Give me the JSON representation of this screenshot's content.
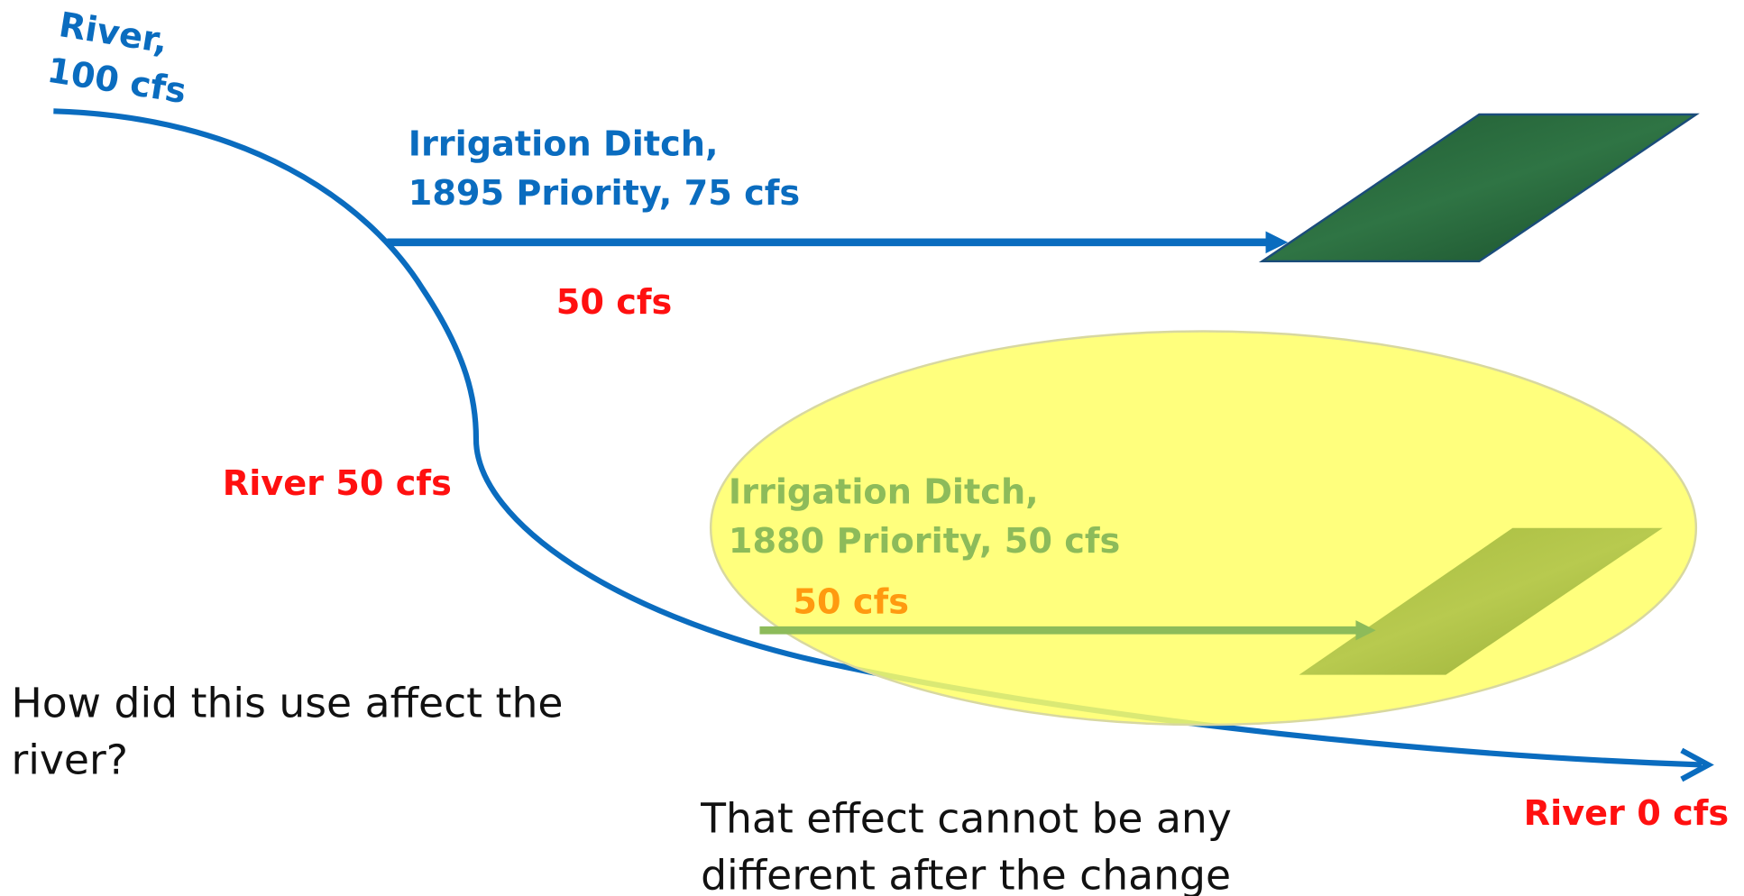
{
  "river_start": {
    "lines": [
      "River,",
      "100 cfs"
    ]
  },
  "ditch_1895": {
    "lines": [
      "Irrigation Ditch,",
      "1895 Priority, 75 cfs"
    ],
    "flow": "50 cfs"
  },
  "river_mid": "River 50 cfs",
  "ditch_1880": {
    "lines": [
      "Irrigation Ditch,",
      "1880 Priority, 50 cfs"
    ],
    "flow": "50 cfs"
  },
  "river_end": "River 0 cfs",
  "question": {
    "lines": [
      "How did this use affect the",
      "river?"
    ]
  },
  "answer": {
    "lines": [
      "That effect cannot be any",
      "different after the change"
    ]
  }
}
